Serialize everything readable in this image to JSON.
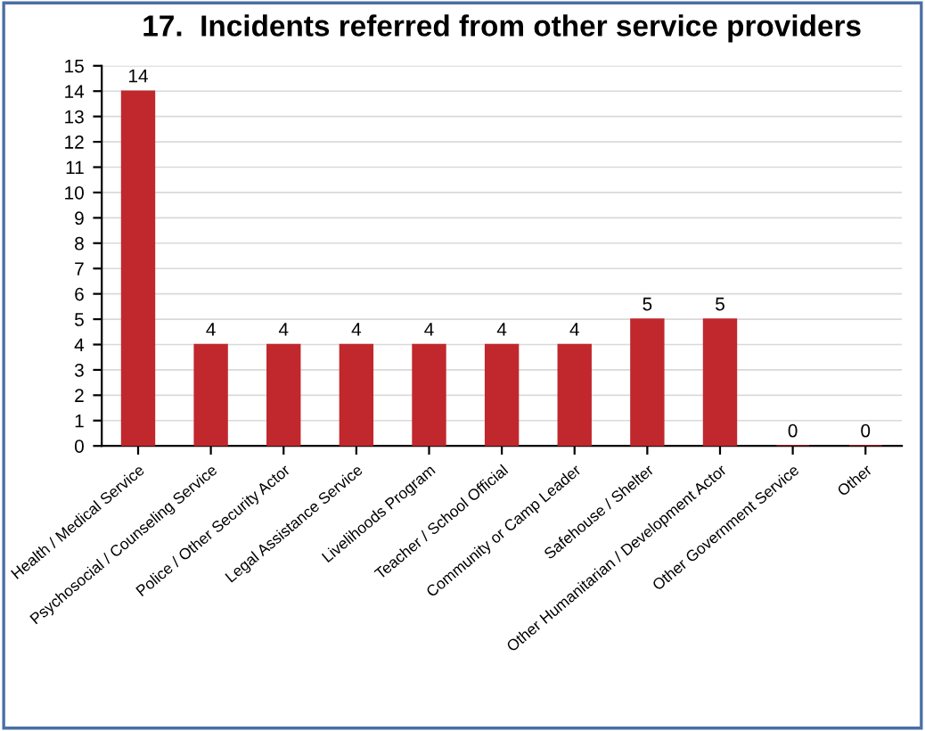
{
  "chart_data": {
    "type": "bar",
    "title": "17.  Incidents referred from other service providers",
    "categories": [
      "Health / Medical Service",
      "Psychosocial / Counseling Service",
      "Police / Other Security Actor",
      "Legal Assistance Service",
      "Livelihoods Program",
      "Teacher / School Official",
      "Community or Camp Leader",
      "Safehouse / Shelter",
      "Other Humanitarian / Development Actor",
      "Other Government Service",
      "Other"
    ],
    "values": [
      14,
      4,
      4,
      4,
      4,
      4,
      4,
      5,
      5,
      0,
      0
    ],
    "color": "#c0282d",
    "ylim": [
      0,
      15
    ],
    "yticks": [
      0,
      1,
      2,
      3,
      4,
      5,
      6,
      7,
      8,
      9,
      10,
      11,
      12,
      13,
      14,
      15
    ],
    "grid": "y",
    "data_labels": true,
    "legend": false
  }
}
